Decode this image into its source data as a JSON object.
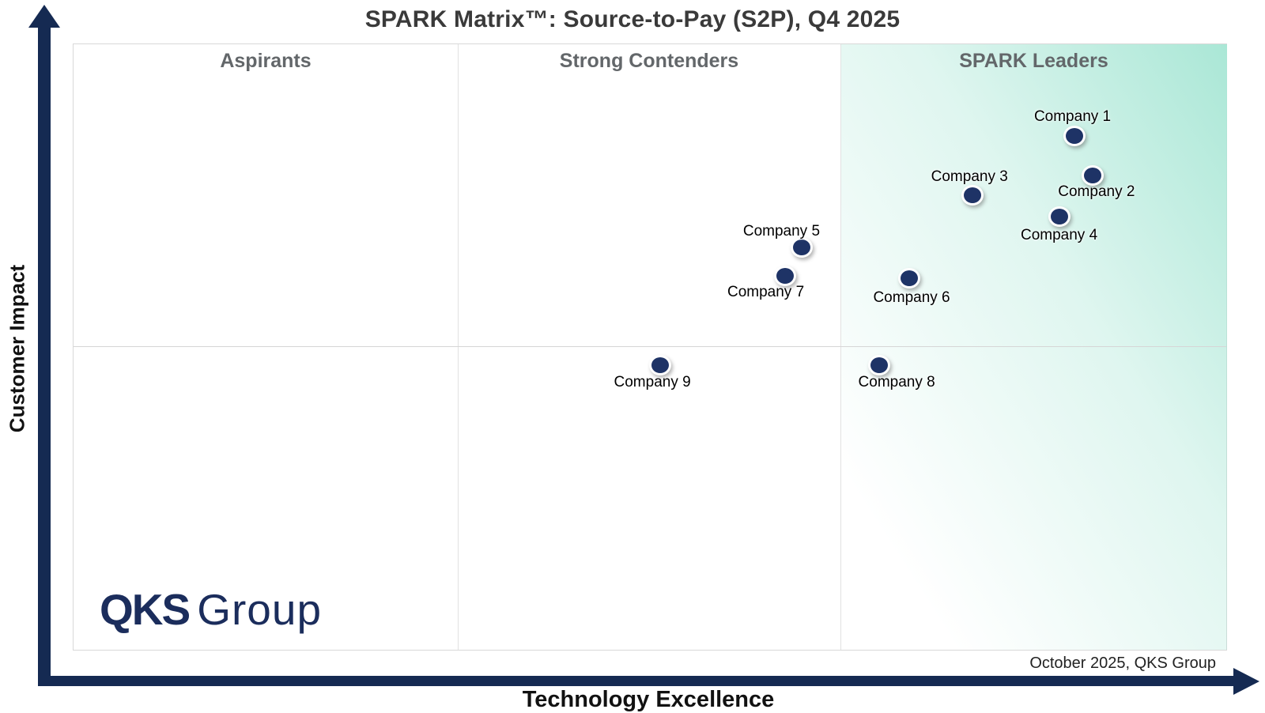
{
  "title": "SPARK Matrix™: Source-to-Pay (S2P), Q4 2025",
  "axes": {
    "x_label": "Technology Excellence",
    "y_label": "Customer Impact"
  },
  "quadrants": [
    "Aspirants",
    "Strong Contenders",
    "SPARK Leaders"
  ],
  "footnote": "October 2025, QKS Group",
  "logo": {
    "bold": "QKS",
    "light": "Group"
  },
  "colors": {
    "axis_navy": "#152a52",
    "dot_navy": "#1e3366",
    "logo_navy": "#1b2d5c",
    "leaders_gradient_mint": "#aae7d6",
    "quadrant_header_gray": "#63676a",
    "title_gray": "#3a3a3a",
    "grid_line": "#d8d8d8"
  },
  "chart_data": {
    "type": "scatter",
    "title": "SPARK Matrix™: Source-to-Pay (S2P), Q4 2025",
    "xlabel": "Technology Excellence",
    "ylabel": "Customer Impact",
    "axis_ranges": "no numeric ticks; positions are % of plot area (0-100)",
    "grid": "2x3 quadrant grid, top-right cell shaded with mint gradient",
    "points": [
      {
        "name": "Company 1",
        "tech_pct": 86.8,
        "impact_pct": 84.8,
        "quadrant": "SPARK Leaders",
        "label_offset": [
          -2,
          -24
        ]
      },
      {
        "name": "Company 2",
        "tech_pct": 88.4,
        "impact_pct": 78.3,
        "quadrant": "SPARK Leaders",
        "label_offset": [
          5,
          21
        ]
      },
      {
        "name": "Company 3",
        "tech_pct": 78.0,
        "impact_pct": 75.1,
        "quadrant": "SPARK Leaders",
        "label_offset": [
          -4,
          -23
        ]
      },
      {
        "name": "Company 4",
        "tech_pct": 85.5,
        "impact_pct": 71.5,
        "quadrant": "SPARK Leaders",
        "label_offset": [
          0,
          24
        ]
      },
      {
        "name": "Company 5",
        "tech_pct": 63.2,
        "impact_pct": 66.5,
        "quadrant": "Strong Contenders",
        "label_offset": [
          -26,
          -20
        ]
      },
      {
        "name": "Company 6",
        "tech_pct": 72.5,
        "impact_pct": 61.3,
        "quadrant": "SPARK Leaders",
        "label_offset": [
          3,
          25
        ]
      },
      {
        "name": "Company 7",
        "tech_pct": 61.7,
        "impact_pct": 61.7,
        "quadrant": "Strong Contenders",
        "label_offset": [
          -24,
          21
        ]
      },
      {
        "name": "Company 8",
        "tech_pct": 69.9,
        "impact_pct": 47.0,
        "quadrant": "lower-right",
        "label_offset": [
          22,
          22
        ]
      },
      {
        "name": "Company 9",
        "tech_pct": 50.9,
        "impact_pct": 47.0,
        "quadrant": "lower-middle",
        "label_offset": [
          -10,
          22
        ]
      }
    ]
  }
}
